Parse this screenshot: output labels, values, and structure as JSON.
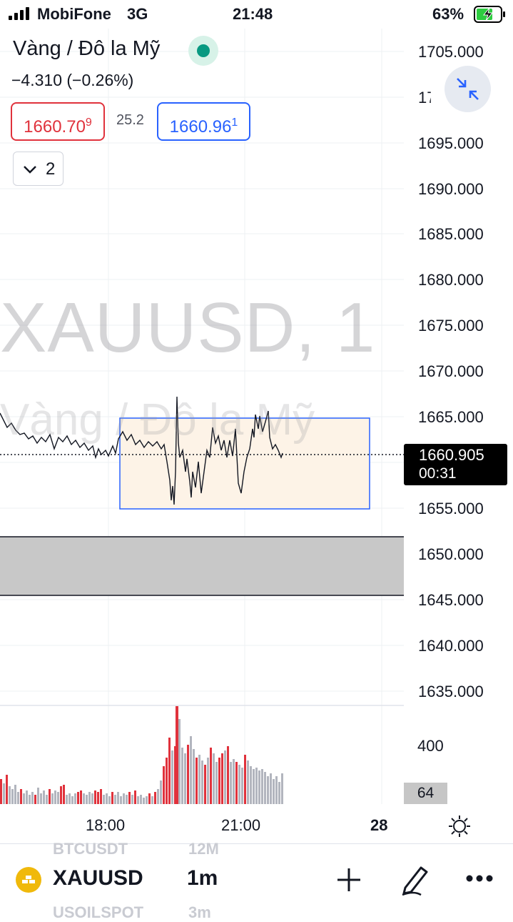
{
  "status_bar": {
    "carrier": "MobiFone",
    "network": "3G",
    "time": "21:48",
    "battery": "63%"
  },
  "header": {
    "title": "Vàng / Đô la Mỹ",
    "change": "−4.310 (−0.26%)",
    "market_status_color": "#089981",
    "bid": "1660.709",
    "spread": "25.2",
    "ask": "1660.961",
    "collapse_count": "2"
  },
  "watermark": {
    "symbol_line": "XAUUSD, 1",
    "name_line": "Vàng / Đô la Mỹ"
  },
  "price_axis": {
    "labels": [
      "1705.000",
      "1700.000",
      "1695.000",
      "1690.000",
      "1685.000",
      "1680.000",
      "1675.000",
      "1670.000",
      "1665.000",
      "1655.000",
      "1650.000",
      "1645.000",
      "1640.000",
      "1635.000"
    ],
    "current_price": "1660.905",
    "countdown": "00:31",
    "last_price_value": 1660.905
  },
  "volume_axis": {
    "label": "400",
    "current_volume": "64"
  },
  "time_axis": {
    "labels": [
      "18:00",
      "21:00",
      "28"
    ]
  },
  "drawings": {
    "rectangle_high": 1665.0,
    "rectangle_low": 1655.0,
    "rectangle_fill": "#fdf3e7",
    "rectangle_border": "#2962ff",
    "zone_high": 1652.0,
    "zone_low": 1645.5,
    "zone_fill": "#c8c8c8"
  },
  "bottom_bar": {
    "ghost_top": "BTCUSDT",
    "ghost_top_tf": "12M",
    "symbol": "XAUUSD",
    "timeframe": "1m",
    "ghost_bottom": "USOILSPOT",
    "ghost_bottom_tf": "3m"
  },
  "colors": {
    "volume_down": "#e0323c",
    "volume_up": "#b2b5be",
    "accent": "#2962ff"
  }
}
